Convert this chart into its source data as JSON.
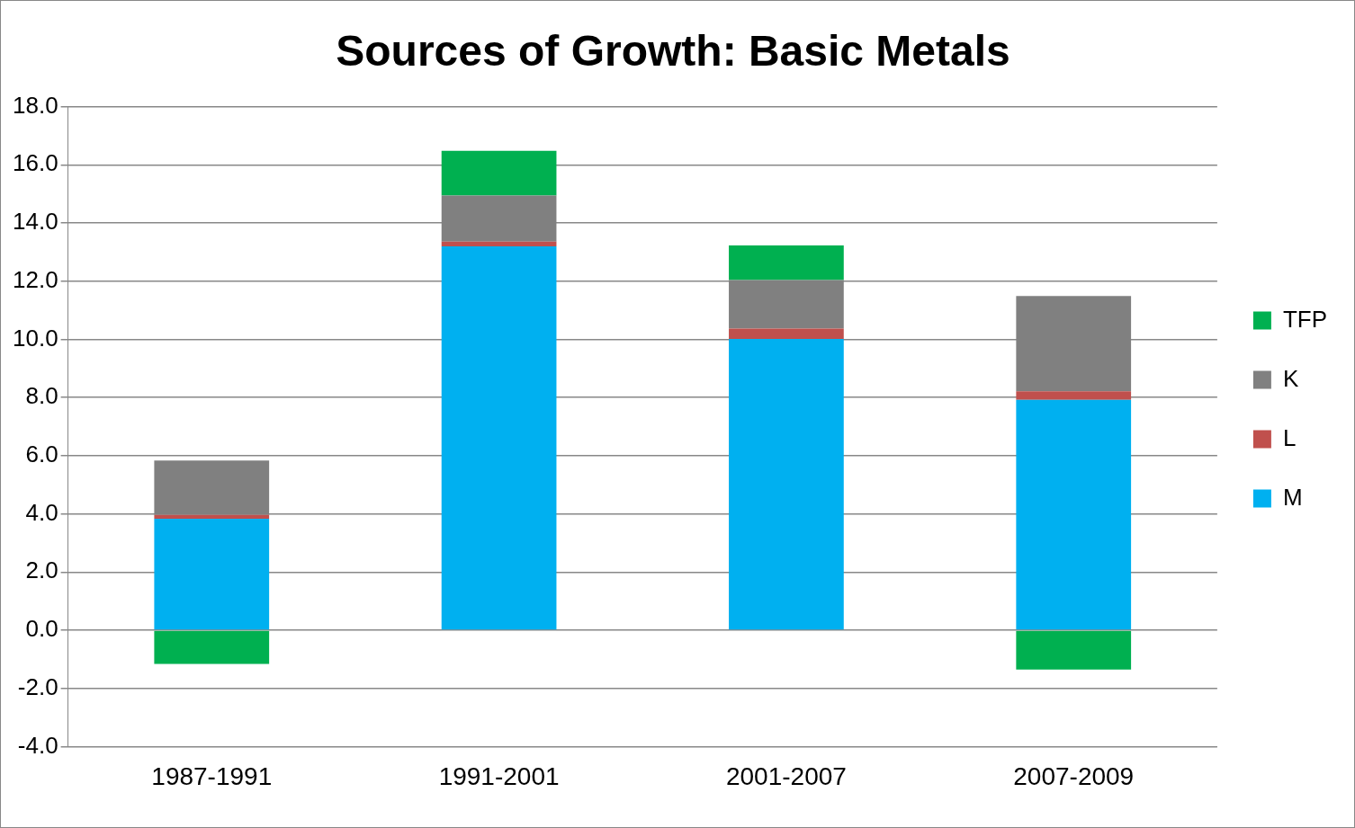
{
  "chart_data": {
    "type": "bar",
    "title": "Sources of Growth: Basic Metals",
    "categories": [
      "1987-1991",
      "1991-2001",
      "2001-2007",
      "2007-2009"
    ],
    "stacked": true,
    "series": [
      {
        "name": "M",
        "color": "#00b0f0",
        "values": [
          3.83,
          13.2,
          10.01,
          7.92
        ]
      },
      {
        "name": "L",
        "color": "#c0504d",
        "values": [
          0.13,
          0.16,
          0.36,
          0.29
        ]
      },
      {
        "name": "K",
        "color": "#808080",
        "values": [
          1.87,
          1.58,
          1.67,
          3.28
        ]
      },
      {
        "name": "TFP",
        "color": "#00b050",
        "values": [
          -1.16,
          1.54,
          1.19,
          -1.35
        ]
      }
    ],
    "ylim": [
      -4,
      18
    ],
    "yticks": [
      {
        "value": -4,
        "label": "-4.0"
      },
      {
        "value": -2,
        "label": "-2.0"
      },
      {
        "value": 0,
        "label": "0.0"
      },
      {
        "value": 2,
        "label": "2.0"
      },
      {
        "value": 4,
        "label": "4.0"
      },
      {
        "value": 6,
        "label": "6.0"
      },
      {
        "value": 8,
        "label": "8.0"
      },
      {
        "value": 10,
        "label": "10.0"
      },
      {
        "value": 12,
        "label": "12.0"
      },
      {
        "value": 14,
        "label": "14.0"
      },
      {
        "value": 16,
        "label": "16.0"
      },
      {
        "value": 18,
        "label": "18.0"
      }
    ],
    "grid": "y",
    "legend": "right"
  }
}
